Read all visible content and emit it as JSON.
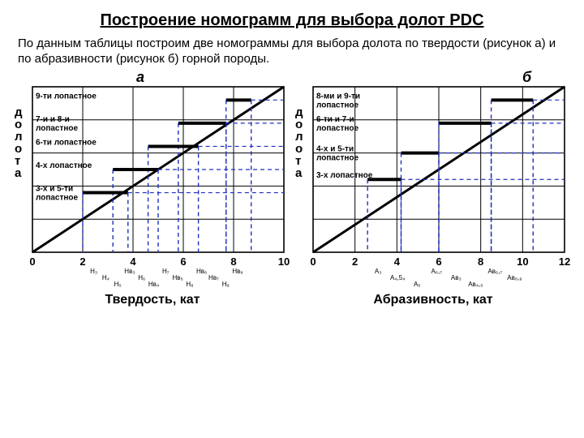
{
  "title": "Построение номограмм для выбора долот PDC",
  "intro": "По данным таблицы построим две номограммы для выбора долота по твердости (рисунок а) и по абразивности (рисунок б) горной породы.",
  "ylabel": "долота",
  "colors": {
    "bg": "#ffffff",
    "grid": "#000000",
    "diag": "#000000",
    "bar": "#000000",
    "dash": "#2030c0"
  },
  "chart_a": {
    "label": "а",
    "xlabel": "Твердость, кат",
    "xlim": [
      0,
      10
    ],
    "xticks": [
      0,
      2,
      4,
      6,
      8,
      10
    ],
    "categories": [
      {
        "text": "9-ти лопастное",
        "y": 0.92,
        "from": 7.7,
        "to": 8.7
      },
      {
        "text": "7-и и 8-и лопастное",
        "y": 0.78,
        "from": 5.8,
        "to": 7.7
      },
      {
        "text": "6-ти лопастное",
        "y": 0.64,
        "from": 4.6,
        "to": 6.6
      },
      {
        "text": "4-х лопастное",
        "y": 0.5,
        "from": 3.2,
        "to": 5.0
      },
      {
        "text": "3-х и 5-ти лопастное",
        "y": 0.36,
        "from": 2.0,
        "to": 3.8
      }
    ],
    "sublabels": [
      "H₃",
      "H₄",
      "H₅",
      "Hв₃",
      "H₆",
      "Hв₄",
      "H₇",
      "Hв₅",
      "H₈",
      "Hв₆",
      "Hв₇",
      "H₉",
      "Hв₉"
    ]
  },
  "chart_b": {
    "label": "б",
    "xlabel": "Абразивность, кат",
    "xlim": [
      0,
      12
    ],
    "xticks": [
      0,
      2,
      4,
      6,
      8,
      10,
      12
    ],
    "categories": [
      {
        "text": "8-ми и 9-ти лопастное",
        "y": 0.92,
        "from": 8.5,
        "to": 10.5
      },
      {
        "text": "6-ти и 7-и лопастное",
        "y": 0.78,
        "from": 6.0,
        "to": 8.5
      },
      {
        "text": "4-х и 5-ти лопастное",
        "y": 0.6,
        "from": 4.2,
        "to": 6.0
      },
      {
        "text": "3-х лопастное",
        "y": 0.44,
        "from": 2.6,
        "to": 4.2
      }
    ],
    "sublabels": [
      "A₃",
      "A₄,5₄",
      "A₅",
      "A₆,₇",
      "Aв₃",
      "Aв₄,₅",
      "Aв₆,₇",
      "Aв₈,₉"
    ]
  }
}
